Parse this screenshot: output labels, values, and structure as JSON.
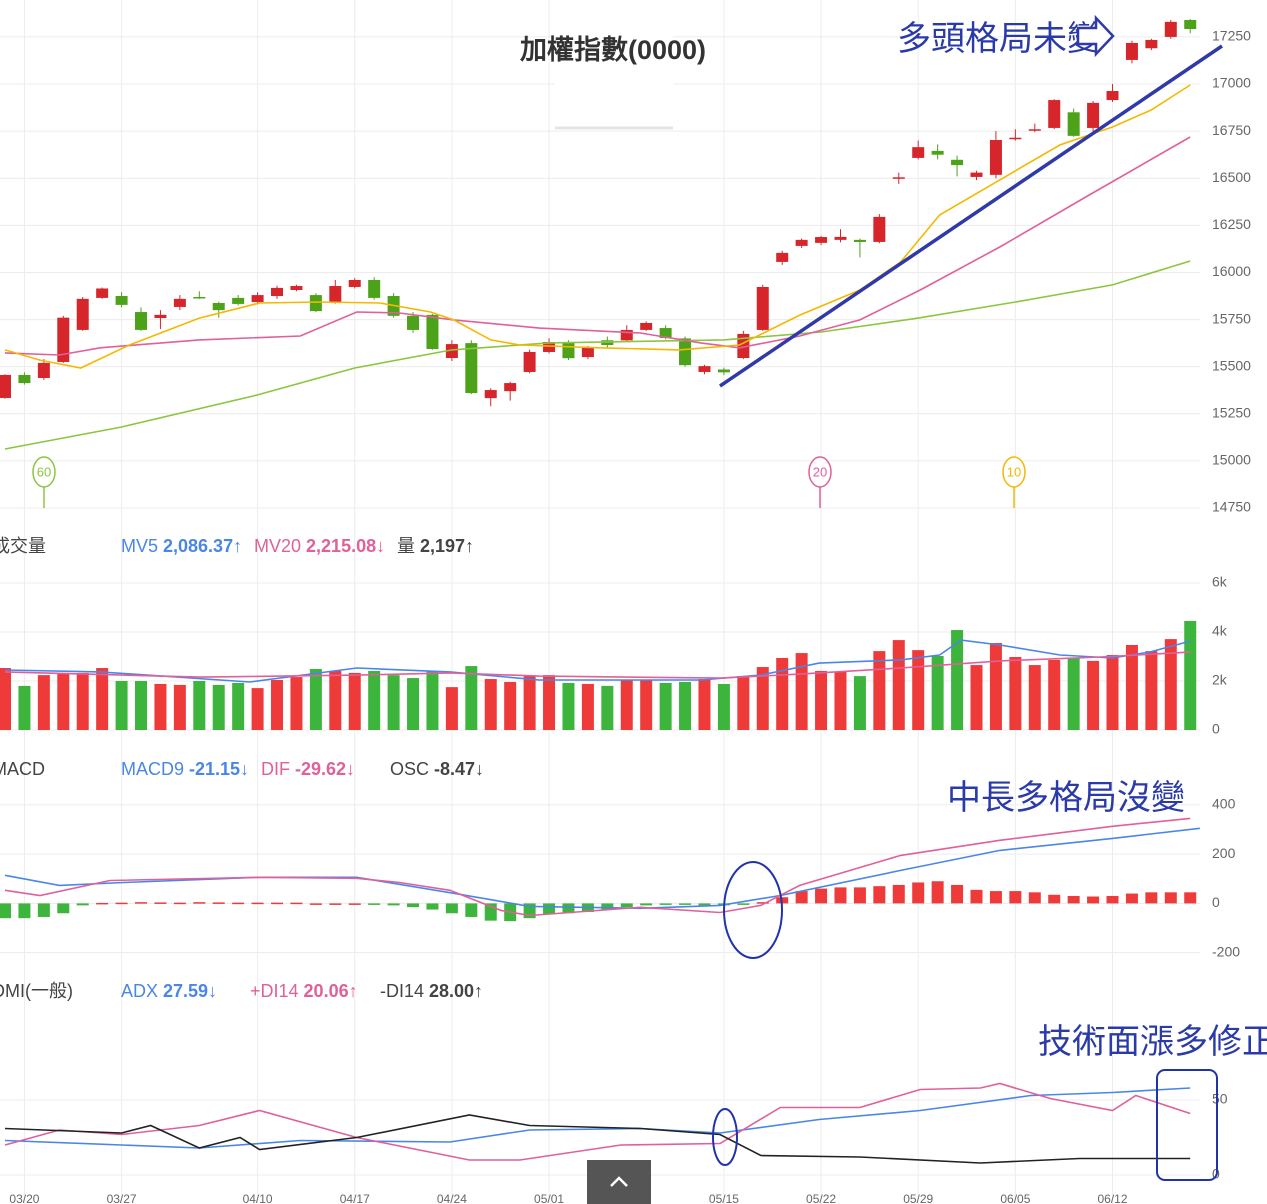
{
  "title": "加權指數(0000)",
  "annotations": [
    "多頭格局未變",
    "中長多格局沒變",
    "技術面漲多修正"
  ],
  "chart_data": [
    {
      "type": "candlestick",
      "categories": [
        null,
        "03/20",
        null,
        null,
        null,
        null,
        "03/27",
        null,
        null,
        null,
        null,
        null,
        null,
        "04/10",
        null,
        null,
        null,
        null,
        "04/17",
        null,
        null,
        null,
        null,
        "04/24",
        null,
        null,
        null,
        null,
        "05/01",
        null,
        null,
        null,
        null,
        null,
        null,
        null,
        null,
        "05/15",
        null,
        null,
        null,
        null,
        "05/22",
        null,
        null,
        null,
        null,
        "05/29",
        null,
        null,
        null,
        null,
        "06/05",
        null,
        null,
        null,
        null,
        "06/12",
        null,
        null,
        null,
        null
      ],
      "open": [
        15334,
        15456,
        15440,
        15525,
        15695,
        15865,
        15875,
        15790,
        15758,
        15817,
        15870,
        15838,
        15865,
        15843,
        15875,
        15907,
        15880,
        15843,
        15923,
        15960,
        15875,
        15770,
        15775,
        15546,
        15625,
        15333,
        15370,
        15472,
        15578,
        15630,
        15551,
        15640,
        15640,
        15695,
        15705,
        15650,
        15472,
        15485,
        15546,
        15695,
        16056,
        16141,
        16157,
        16173,
        16173,
        16162,
        16500,
        16608,
        16645,
        16598,
        16507,
        16518,
        16710,
        16755,
        16767,
        16850,
        16767,
        16915,
        17128,
        17190,
        17250,
        17340
      ],
      "high": [
        15460,
        15470,
        15540,
        15770,
        15870,
        15920,
        15895,
        15815,
        15800,
        15880,
        15900,
        15845,
        15880,
        15895,
        15930,
        15935,
        15890,
        15960,
        15970,
        15975,
        15890,
        15790,
        15780,
        15640,
        15640,
        15385,
        15420,
        15590,
        15650,
        15640,
        15610,
        15660,
        15720,
        15740,
        15720,
        15660,
        15510,
        15495,
        15690,
        15935,
        16115,
        16180,
        16195,
        16230,
        16180,
        16310,
        16530,
        16700,
        16680,
        16620,
        16540,
        16750,
        16760,
        16790,
        16920,
        16870,
        16910,
        17000,
        17230,
        17240,
        17340,
        17345
      ],
      "low": [
        15330,
        15405,
        15430,
        15520,
        15690,
        15860,
        15815,
        15690,
        15700,
        15800,
        15860,
        15760,
        15825,
        15830,
        15860,
        15900,
        15790,
        15835,
        15915,
        15855,
        15760,
        15680,
        15590,
        15530,
        15355,
        15290,
        15320,
        15465,
        15570,
        15535,
        15540,
        15600,
        15635,
        15690,
        15645,
        15500,
        15460,
        15455,
        15540,
        15690,
        16040,
        16130,
        16145,
        16160,
        16080,
        16155,
        16470,
        16600,
        16600,
        16510,
        16490,
        16500,
        16700,
        16745,
        16760,
        16720,
        16750,
        16905,
        17110,
        17180,
        17240,
        17270
      ],
      "close": [
        15456,
        15413,
        15520,
        15760,
        15860,
        15915,
        15828,
        15695,
        15775,
        15860,
        15865,
        15800,
        15833,
        15880,
        15918,
        15928,
        15795,
        15928,
        15960,
        15865,
        15770,
        15695,
        15594,
        15620,
        15360,
        15376,
        15413,
        15578,
        15631,
        15545,
        15604,
        15615,
        15695,
        15732,
        15652,
        15508,
        15503,
        15470,
        15674,
        15923,
        16104,
        16173,
        16188,
        16189,
        16162,
        16295,
        16505,
        16665,
        16625,
        16570,
        16530,
        16703,
        16715,
        16760,
        16915,
        16725,
        16900,
        16963,
        17218,
        17234,
        17330,
        17292
      ],
      "up_color": "#d7262b",
      "down_color": "#4ca219",
      "ylim": [
        14750,
        17446
      ],
      "yticks": [
        14750,
        15000,
        15250,
        15500,
        15750,
        16000,
        16250,
        16500,
        16750,
        17000,
        17250
      ],
      "grid": true,
      "series": [
        {
          "name": "60",
          "color": "#8cc63f",
          "x": [
            0,
            6,
            13,
            18,
            23,
            28,
            37,
            42,
            47,
            52,
            57,
            61
          ],
          "values": [
            15063,
            15180,
            15350,
            15493,
            15589,
            15626,
            15642,
            15684,
            15758,
            15843,
            15934,
            16061
          ]
        },
        {
          "name": "20",
          "color": "#e0609a",
          "x": [
            0,
            2.8,
            4.9,
            10,
            15.2,
            18.1,
            20.3,
            23.1,
            27.5,
            32.7,
            35.8,
            37.8,
            40.9,
            44,
            47.1,
            51.2,
            55.8,
            61
          ],
          "values": [
            15573,
            15562,
            15600,
            15642,
            15663,
            15790,
            15785,
            15748,
            15705,
            15679,
            15626,
            15600,
            15663,
            15748,
            15907,
            16135,
            16411,
            16719
          ]
        },
        {
          "name": "10",
          "color": "#f5b800",
          "x": [
            0,
            1.8,
            3.9,
            6.4,
            10,
            13.1,
            16.2,
            19.3,
            21.9,
            23.1,
            25,
            26.5,
            30.6,
            34.7,
            37.8,
            40.9,
            44,
            46.1,
            48.1,
            51.2,
            54.3,
            57,
            59,
            61
          ],
          "values": [
            15589,
            15535,
            15493,
            15615,
            15758,
            15838,
            15843,
            15838,
            15790,
            15748,
            15642,
            15615,
            15600,
            15589,
            15615,
            15774,
            15907,
            16056,
            16305,
            16491,
            16677,
            16772,
            16863,
            16995
          ]
        }
      ]
    },
    {
      "type": "bar",
      "title": "成交量",
      "name": "量",
      "readout": "2,197↑",
      "values": [
        2530,
        1800,
        2240,
        2330,
        2330,
        2530,
        2000,
        2000,
        1880,
        1840,
        2000,
        1840,
        1920,
        1710,
        2040,
        2160,
        2490,
        2410,
        2330,
        2410,
        2240,
        2120,
        2410,
        1750,
        2610,
        2080,
        1960,
        2200,
        2240,
        1920,
        1880,
        1800,
        2040,
        2040,
        1920,
        1960,
        2080,
        1880,
        2200,
        2570,
        2940,
        3140,
        2410,
        2370,
        2200,
        3220,
        3670,
        3260,
        3020,
        4080,
        2650,
        3550,
        2980,
        2650,
        2860,
        2940,
        2820,
        3060,
        3470,
        3220,
        3710,
        4450
      ],
      "up_color": "#ef3a3a",
      "down_color": "#3db53d",
      "ylim": [
        0,
        6000
      ],
      "yticks": [
        0,
        {
          "value": 2000,
          "label": "2k"
        },
        {
          "value": 4000,
          "label": "4k"
        },
        {
          "value": 6000,
          "label": "6k"
        }
      ],
      "series": [
        {
          "name": "MV5",
          "readout": "2,086.37↑",
          "color": "#4a86e8",
          "x": [
            0,
            4.9,
            12.6,
            18.1,
            22.9,
            27.5,
            35.8,
            38.9,
            41.9,
            46.1,
            48.1,
            49.2,
            51.2,
            54.3,
            57,
            58.9,
            61
          ],
          "values": [
            2450,
            2370,
            1960,
            2530,
            2370,
            2040,
            2040,
            2240,
            2730,
            2860,
            3060,
            3670,
            3470,
            3060,
            2940,
            3180,
            3630
          ]
        },
        {
          "name": "MV20",
          "readout": "2,215.08↓",
          "color": "#e0609a",
          "x": [
            0,
            10,
            18.1,
            22.9,
            27.5,
            36.8,
            40.9,
            46.1,
            51.2,
            56.4,
            61
          ],
          "values": [
            2370,
            2160,
            2240,
            2330,
            2200,
            2120,
            2280,
            2530,
            2820,
            2980,
            3180
          ]
        }
      ]
    },
    {
      "type": "macd",
      "title": "MACD",
      "name": "OSC",
      "readout": "-8.47↓",
      "values": [
        -60,
        -60,
        -55,
        -40,
        -8,
        2,
        3,
        5,
        4,
        3,
        5,
        4,
        3,
        3,
        3,
        3,
        0,
        0,
        0,
        -3,
        -8,
        -15,
        -25,
        -40,
        -55,
        -70,
        -72,
        -60,
        -45,
        -40,
        -35,
        -25,
        -15,
        -8,
        -2,
        -4,
        -8,
        -8,
        -5,
        5,
        25,
        50,
        60,
        65,
        65,
        70,
        75,
        85,
        90,
        75,
        55,
        50,
        50,
        45,
        35,
        30,
        28,
        30,
        40,
        45,
        45,
        45
      ],
      "pos_color": "#ef3a3a",
      "neg_color": "#3db53d",
      "ylim": [
        -250,
        440
      ],
      "yticks": [
        -200,
        0,
        200,
        400
      ],
      "series": [
        {
          "name": "MACD9",
          "readout": "-21.15↓",
          "color": "#4a86e8",
          "x": [
            0,
            2.8,
            6.1,
            13.1,
            18.1,
            23.1,
            27,
            32.7,
            36.8,
            39.9,
            46.1,
            51.2,
            57,
            61.5
          ],
          "values": [
            114,
            73,
            85,
            106,
            106,
            41,
            -12,
            -20,
            -8,
            32,
            134,
            215,
            264,
            305
          ]
        },
        {
          "name": "DIF",
          "readout": "-29.62↓",
          "color": "#e0609a",
          "x": [
            0,
            1.8,
            5.4,
            13.1,
            18.1,
            20.3,
            22.9,
            25.5,
            27,
            32.7,
            36.8,
            38.9,
            40.9,
            46.1,
            51.2,
            57,
            61
          ],
          "values": [
            53,
            32,
            93,
            106,
            102,
            85,
            53,
            -28,
            -49,
            -16,
            -37,
            -8,
            73,
            195,
            256,
            313,
            345
          ]
        }
      ]
    },
    {
      "type": "line",
      "title": "DMI(一般)",
      "ylim": [
        0,
        95
      ],
      "yticks": [
        0,
        50
      ],
      "series": [
        {
          "name": "ADX",
          "readout": "27.59↓",
          "color": "#4a86e8",
          "x": [
            0,
            10,
            15.2,
            22.9,
            27,
            32.7,
            36.8,
            41.9,
            47.1,
            52.8,
            57,
            61
          ],
          "values": [
            23,
            18,
            23,
            22,
            30,
            31,
            28,
            37,
            43,
            53,
            55,
            58
          ]
        },
        {
          "name": "+DI14",
          "readout": "20.06↑",
          "color": "#e0609a",
          "x": [
            0,
            2.8,
            6,
            10,
            13.1,
            18.1,
            23.9,
            26.5,
            31.7,
            36.8,
            39.9,
            44,
            47.1,
            50.2,
            51.2,
            53.8,
            57,
            58.2,
            61
          ],
          "values": [
            20,
            30,
            27,
            33,
            43,
            25,
            10,
            10,
            20,
            21,
            45,
            45,
            57,
            58,
            61,
            51,
            43,
            53,
            41
          ]
        },
        {
          "name": "-DI14",
          "readout": "28.00↑",
          "color": "#222222",
          "x": [
            0,
            6,
            7.5,
            10,
            12.1,
            13.1,
            18.1,
            23.9,
            27,
            32.7,
            36.8,
            38.9,
            44,
            50.2,
            55.3,
            61
          ],
          "values": [
            31,
            28,
            33,
            18,
            25,
            17,
            25,
            40,
            33,
            31,
            27,
            13,
            12,
            8,
            11,
            11
          ]
        }
      ]
    }
  ]
}
